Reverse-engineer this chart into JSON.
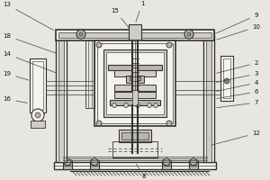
{
  "bg_color": "#e8e6e0",
  "fig_width": 3.0,
  "fig_height": 2.0,
  "dc": "#333333",
  "lc": "#555555",
  "mc": "#888888",
  "fc_light": "#d0ccc6",
  "fc_mid": "#b8b4ae",
  "fc_inner": "#e0dcd6"
}
